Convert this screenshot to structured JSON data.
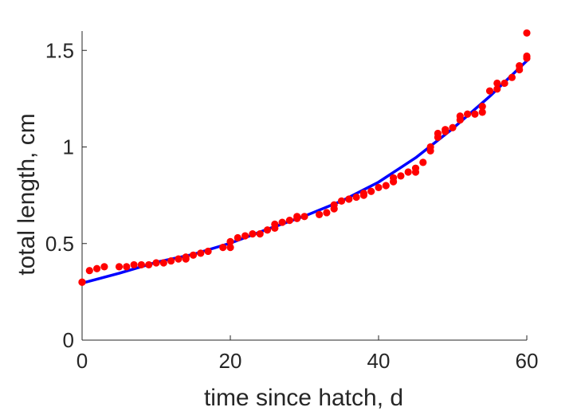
{
  "chart_data": {
    "type": "scatter",
    "title": "",
    "xlabel": "time since hatch, d",
    "ylabel": "total length, cm",
    "xlim": [
      0,
      60
    ],
    "ylim": [
      0,
      1.6
    ],
    "xticks": [
      0,
      20,
      40,
      60
    ],
    "xtick_labels": [
      "0",
      "20",
      "40",
      "60"
    ],
    "yticks": [
      0,
      0.5,
      1,
      1.5
    ],
    "ytick_labels": [
      "0",
      "0.5",
      "1",
      "1.5"
    ],
    "grid": false,
    "legend": "none",
    "series": [
      {
        "kind": "points",
        "color": "#ff0000",
        "x": [
          0,
          0,
          1,
          2,
          3,
          5,
          6,
          7,
          8,
          9,
          10,
          11,
          12,
          13,
          14,
          14,
          15,
          16,
          17,
          19,
          20,
          20,
          21,
          22,
          23,
          24,
          25,
          26,
          26,
          27,
          28,
          29,
          29,
          30,
          32,
          33,
          34,
          34,
          35,
          36,
          37,
          38,
          38,
          39,
          40,
          41,
          42,
          42,
          43,
          44,
          45,
          45,
          46,
          47,
          47,
          48,
          48,
          49,
          49,
          50,
          51,
          51,
          52,
          53,
          54,
          54,
          55,
          56,
          56,
          57,
          58,
          59,
          59,
          60,
          60,
          60
        ],
        "y": [
          0.3,
          0.3,
          0.36,
          0.37,
          0.38,
          0.38,
          0.38,
          0.39,
          0.39,
          0.39,
          0.4,
          0.4,
          0.41,
          0.42,
          0.42,
          0.43,
          0.44,
          0.45,
          0.46,
          0.48,
          0.48,
          0.51,
          0.53,
          0.54,
          0.55,
          0.55,
          0.57,
          0.58,
          0.6,
          0.61,
          0.62,
          0.63,
          0.64,
          0.64,
          0.65,
          0.66,
          0.68,
          0.7,
          0.72,
          0.73,
          0.74,
          0.75,
          0.76,
          0.77,
          0.79,
          0.8,
          0.82,
          0.84,
          0.85,
          0.87,
          0.87,
          0.89,
          0.92,
          0.98,
          1.0,
          1.05,
          1.07,
          1.08,
          1.09,
          1.1,
          1.14,
          1.16,
          1.17,
          1.17,
          1.18,
          1.21,
          1.29,
          1.3,
          1.33,
          1.33,
          1.36,
          1.4,
          1.42,
          1.46,
          1.47,
          1.59
        ]
      },
      {
        "kind": "line",
        "color": "#0000ff",
        "x": [
          0,
          5,
          10,
          15,
          20,
          25,
          30,
          35,
          40,
          45,
          50,
          55,
          60
        ],
        "y": [
          0.295,
          0.346,
          0.403,
          0.444,
          0.502,
          0.574,
          0.642,
          0.72,
          0.818,
          0.944,
          1.095,
          1.262,
          1.446
        ]
      }
    ]
  }
}
